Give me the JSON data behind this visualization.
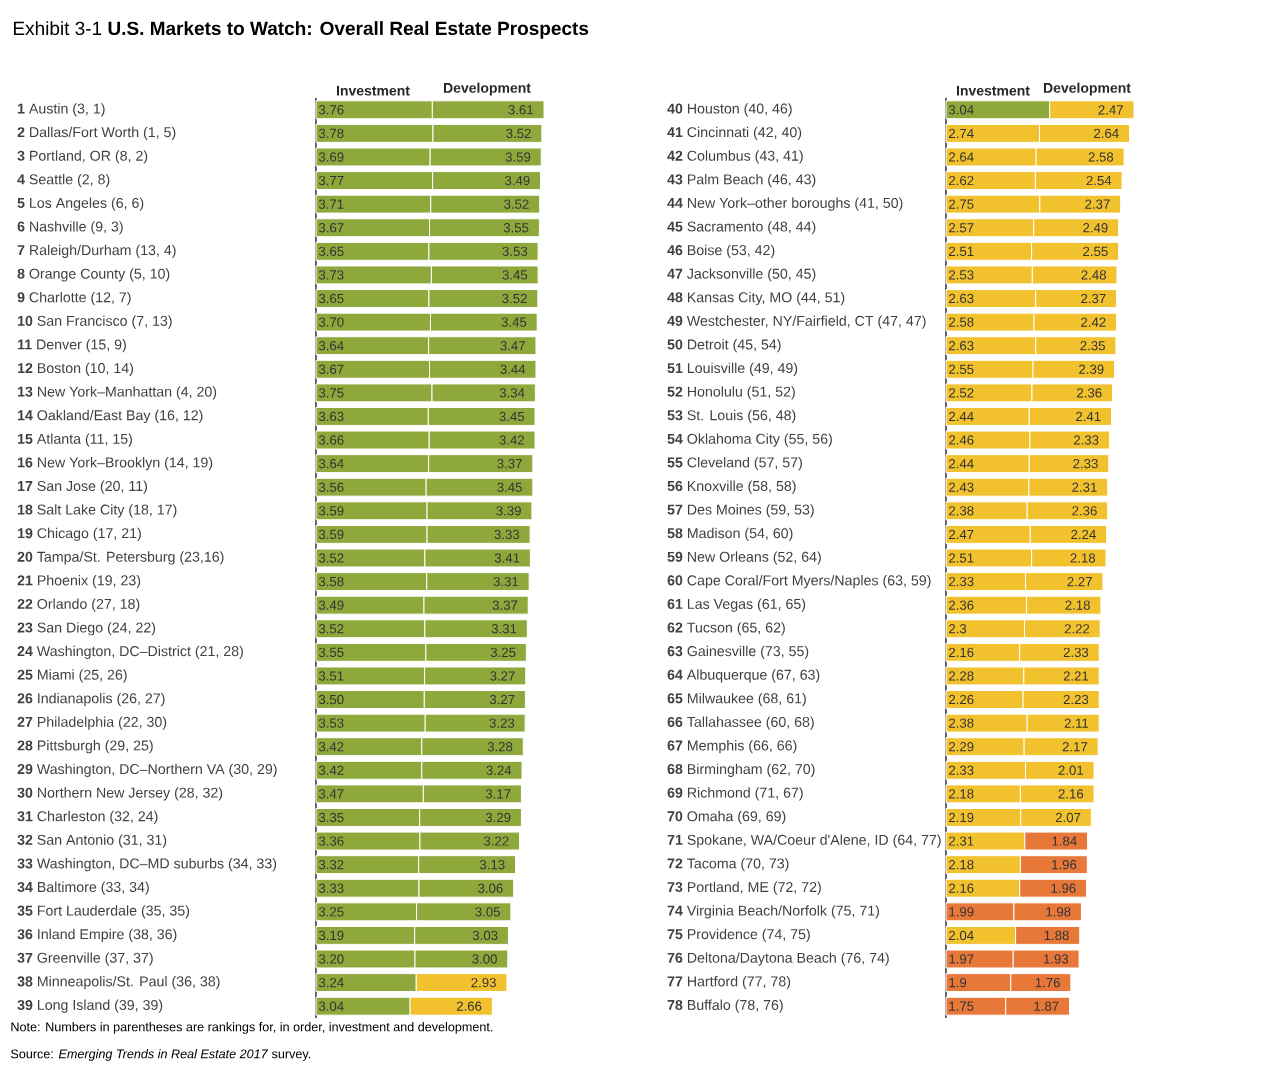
{
  "chart_data": [
    {
      "type": "bar",
      "orientation": "horizontal",
      "stacked": true,
      "title": "Exhibit 3-1  **U.S. Markets to Watch: Overall Real Estate Prospects**",
      "annotations": [
        "Note: Numbers in parentheses are rankings for, in order, investment and development.",
        "Source: *Emerging Trends in Real Estate 2017* survey."
      ],
      "categories": [
        "**1** Austin (3, 1)",
        "**2** Dallas/Fort Worth (1, 5)",
        "**3** Portland, OR (8, 2)",
        "**4** Seattle (2, 8)",
        "**5** Los Angeles (6, 6)",
        "**6** Nashville (9, 3)",
        "**7** Raleigh/Durham (13, 4)",
        "**8** Orange County (5, 10)",
        "**9** Charlotte (12, 7)",
        "**10** San Francisco (7, 13)",
        "**11** Denver (15, 9)",
        "**12** Boston (10, 14)",
        "**13** New York–Manhattan (4, 20)",
        "**14** Oakland/East Bay (16, 12)",
        "**15** Atlanta (11, 15)",
        "**16** New York–Brooklyn (14, 19)",
        "**17** San Jose (20, 11)",
        "**18** Salt Lake City (18, 17)",
        "**19** Chicago (17, 21)",
        "**20** Tampa/St. Petersburg (23,16)",
        "**21** Phoenix (19, 23)",
        "**22** Orlando (27, 18)",
        "**23** San Diego (24, 22)",
        "**24** Washington, DC–District (21, 28)",
        "**25** Miami (25, 26)",
        "**26** Indianapolis (26, 27)",
        "**27** Philadelphia (22, 30)",
        "**28** Pittsburgh (29, 25)",
        "**29** Washington, DC–Northern VA (30, 29)",
        "**30** Northern New Jersey (28, 32)",
        "**31** Charleston (32, 24)",
        "**32** San Antonio (31, 31)",
        "**33** Washington, DC–MD suburbs (34, 33)",
        "**34** Baltimore (33, 34)",
        "**35** Fort Lauderdale (35, 35)",
        "**36** Inland Empire (38, 36)",
        "**37** Greenville (37, 37)",
        "**38** Minneapolis/St. Paul (36, 38)",
        "**39** Long Island (39, 39)"
      ],
      "series": [
        {
          "name": "Investment",
          "values": [
            3.76,
            3.78,
            3.69,
            3.77,
            3.71,
            3.67,
            3.65,
            3.73,
            3.65,
            3.7,
            3.64,
            3.67,
            3.75,
            3.63,
            3.66,
            3.64,
            3.56,
            3.59,
            3.59,
            3.52,
            3.58,
            3.49,
            3.52,
            3.55,
            3.51,
            3.5,
            3.53,
            3.42,
            3.42,
            3.47,
            3.35,
            3.36,
            3.32,
            3.33,
            3.25,
            3.19,
            3.2,
            3.24,
            3.04
          ],
          "value_labels": [
            "3.76",
            "3.78",
            "3.69",
            "3.77",
            "3.71",
            "3.67",
            "3.65",
            "3.73",
            "3.65",
            "3.70",
            "3.64",
            "3.67",
            "3.75",
            "3.63",
            "3.66",
            "3.64",
            "3.56",
            "3.59",
            "3.59",
            "3.52",
            "3.58",
            "3.49",
            "3.52",
            "3.55",
            "3.51",
            "3.50",
            "3.53",
            "3.42",
            "3.42",
            "3.47",
            "3.35",
            "3.36",
            "3.32",
            "3.33",
            "3.25",
            "3.19",
            "3.20",
            "3.24",
            "3.04"
          ],
          "colors": [
            "#8fa83c",
            "#8fa83c",
            "#8fa83c",
            "#8fa83c",
            "#8fa83c",
            "#8fa83c",
            "#8fa83c",
            "#8fa83c",
            "#8fa83c",
            "#8fa83c",
            "#8fa83c",
            "#8fa83c",
            "#8fa83c",
            "#8fa83c",
            "#8fa83c",
            "#8fa83c",
            "#8fa83c",
            "#8fa83c",
            "#8fa83c",
            "#8fa83c",
            "#8fa83c",
            "#8fa83c",
            "#8fa83c",
            "#8fa83c",
            "#8fa83c",
            "#8fa83c",
            "#8fa83c",
            "#8fa83c",
            "#8fa83c",
            "#8fa83c",
            "#8fa83c",
            "#8fa83c",
            "#8fa83c",
            "#8fa83c",
            "#8fa83c",
            "#8fa83c",
            "#8fa83c",
            "#8fa83c",
            "#8fa83c"
          ]
        },
        {
          "name": "Development",
          "values": [
            3.61,
            3.52,
            3.59,
            3.49,
            3.52,
            3.55,
            3.53,
            3.45,
            3.52,
            3.45,
            3.47,
            3.44,
            3.34,
            3.45,
            3.42,
            3.37,
            3.45,
            3.39,
            3.33,
            3.41,
            3.31,
            3.37,
            3.31,
            3.25,
            3.27,
            3.27,
            3.23,
            3.28,
            3.24,
            3.17,
            3.29,
            3.22,
            3.13,
            3.06,
            3.05,
            3.03,
            3.0,
            2.93,
            2.66
          ],
          "value_labels": [
            "3.61",
            "3.52",
            "3.59",
            "3.49",
            "3.52",
            "3.55",
            "3.53",
            "3.45",
            "3.52",
            "3.45",
            "3.47",
            "3.44",
            "3.34",
            "3.45",
            "3.42",
            "3.37",
            "3.45",
            "3.39",
            "3.33",
            "3.41",
            "3.31",
            "3.37",
            "3.31",
            "3.25",
            "3.27",
            "3.27",
            "3.23",
            "3.28",
            "3.24",
            "3.17",
            "3.29",
            "3.22",
            "3.13",
            "3.06",
            "3.05",
            "3.03",
            "3.00",
            "2.93",
            "2.66"
          ],
          "colors": [
            "#8fa83c",
            "#8fa83c",
            "#8fa83c",
            "#8fa83c",
            "#8fa83c",
            "#8fa83c",
            "#8fa83c",
            "#8fa83c",
            "#8fa83c",
            "#8fa83c",
            "#8fa83c",
            "#8fa83c",
            "#8fa83c",
            "#8fa83c",
            "#8fa83c",
            "#8fa83c",
            "#8fa83c",
            "#8fa83c",
            "#8fa83c",
            "#8fa83c",
            "#8fa83c",
            "#8fa83c",
            "#8fa83c",
            "#8fa83c",
            "#8fa83c",
            "#8fa83c",
            "#8fa83c",
            "#8fa83c",
            "#8fa83c",
            "#8fa83c",
            "#8fa83c",
            "#8fa83c",
            "#8fa83c",
            "#8fa83c",
            "#8fa83c",
            "#8fa83c",
            "#8fa83c",
            "#f2c12e",
            "#f2c12e"
          ]
        }
      ]
    },
    {
      "type": "bar",
      "orientation": "horizontal",
      "stacked": true,
      "categories": [
        "**40** Houston (40, 46)",
        "**41** Cincinnati (42, 40)",
        "**42** Columbus (43, 41)",
        "**43** Palm Beach (46, 43)",
        "**44** New York–other boroughs (41, 50)",
        "**45** Sacramento (48, 44)",
        "**46** Boise (53, 42)",
        "**47** Jacksonville (50, 45)",
        "**48** Kansas City, MO (44, 51)",
        "**49** Westchester, NY/Fairfield, CT (47, 47)",
        "**50** Detroit (45, 54)",
        "**51** Louisville (49, 49)",
        "**52** Honolulu (51, 52)",
        "**53** St. Louis (56, 48)",
        "**54** Oklahoma City (55, 56)",
        "**55** Cleveland (57, 57)",
        "**56** Knoxville (58, 58)",
        "**57** Des Moines (59, 53)",
        "**58** Madison (54, 60)",
        "**59** New Orleans (52, 64)",
        "**60** Cape Coral/Fort Myers/Naples (63, 59)",
        "**61** Las Vegas (61, 65)",
        "**62** Tucson (65, 62)",
        "**63** Gainesville (73, 55)",
        "**64** Albuquerque (67, 63)",
        "**65** Milwaukee (68, 61)",
        "**66** Tallahassee (60, 68)",
        "**67** Memphis (66, 66)",
        "**68** Birmingham (62, 70)",
        "**69** Richmond (71, 67)",
        "**70** Omaha (69, 69)",
        "**71** Spokane, WA/Coeur d'Alene, ID (64, 77)",
        "**72** Tacoma (70, 73)",
        "**73** Portland, ME (72, 72)",
        "**74** Virginia Beach/Norfolk (75, 71)",
        "**75** Providence (74, 75)",
        "**76** Deltona/Daytona Beach (76, 74)",
        "**77** Hartford (77, 78)",
        "**78** Buffalo (78, 76)"
      ],
      "series": [
        {
          "name": "Investment",
          "values": [
            3.04,
            2.74,
            2.64,
            2.62,
            2.75,
            2.57,
            2.51,
            2.53,
            2.63,
            2.58,
            2.63,
            2.55,
            2.52,
            2.44,
            2.46,
            2.44,
            2.43,
            2.38,
            2.47,
            2.51,
            2.33,
            2.36,
            2.3,
            2.16,
            2.28,
            2.26,
            2.38,
            2.29,
            2.33,
            2.18,
            2.19,
            2.31,
            2.18,
            2.16,
            1.99,
            2.04,
            1.97,
            1.9,
            1.75
          ],
          "value_labels": [
            "3.04",
            "2.74",
            "2.64",
            "2.62",
            "2.75",
            "2.57",
            "2.51",
            "2.53",
            "2.63",
            "2.58",
            "2.63",
            "2.55",
            "2.52",
            "2.44",
            "2.46",
            "2.44",
            "2.43",
            "2.38",
            "2.47",
            "2.51",
            "2.33",
            "2.36",
            "2.3",
            "2.16",
            "2.28",
            "2.26",
            "2.38",
            "2.29",
            "2.33",
            "2.18",
            "2.19",
            "2.31",
            "2.18",
            "2.16",
            "1.99",
            "2.04",
            "1.97",
            "1.9",
            "1.75"
          ],
          "colors": [
            "#8fa83c",
            "#f2c12e",
            "#f2c12e",
            "#f2c12e",
            "#f2c12e",
            "#f2c12e",
            "#f2c12e",
            "#f2c12e",
            "#f2c12e",
            "#f2c12e",
            "#f2c12e",
            "#f2c12e",
            "#f2c12e",
            "#f2c12e",
            "#f2c12e",
            "#f2c12e",
            "#f2c12e",
            "#f2c12e",
            "#f2c12e",
            "#f2c12e",
            "#f2c12e",
            "#f2c12e",
            "#f2c12e",
            "#f2c12e",
            "#f2c12e",
            "#f2c12e",
            "#f2c12e",
            "#f2c12e",
            "#f2c12e",
            "#f2c12e",
            "#f2c12e",
            "#f2c12e",
            "#f2c12e",
            "#f2c12e",
            "#e8773a",
            "#f2c12e",
            "#e8773a",
            "#e8773a",
            "#e8773a"
          ]
        },
        {
          "name": "Development",
          "values": [
            2.47,
            2.64,
            2.58,
            2.54,
            2.37,
            2.49,
            2.55,
            2.48,
            2.37,
            2.42,
            2.35,
            2.39,
            2.36,
            2.41,
            2.33,
            2.33,
            2.31,
            2.36,
            2.24,
            2.18,
            2.27,
            2.18,
            2.22,
            2.33,
            2.21,
            2.23,
            2.11,
            2.17,
            2.01,
            2.16,
            2.07,
            1.84,
            1.96,
            1.96,
            1.98,
            1.88,
            1.93,
            1.76,
            1.87
          ],
          "value_labels": [
            "2.47",
            "2.64",
            "2.58",
            "2.54",
            "2.37",
            "2.49",
            "2.55",
            "2.48",
            "2.37",
            "2.42",
            "2.35",
            "2.39",
            "2.36",
            "2.41",
            "2.33",
            "2.33",
            "2.31",
            "2.36",
            "2.24",
            "2.18",
            "2.27",
            "2.18",
            "2.22",
            "2.33",
            "2.21",
            "2.23",
            "2.11",
            "2.17",
            "2.01",
            "2.16",
            "2.07",
            "1.84",
            "1.96",
            "1.96",
            "1.98",
            "1.88",
            "1.93",
            "1.76",
            "1.87"
          ],
          "colors": [
            "#f2c12e",
            "#f2c12e",
            "#f2c12e",
            "#f2c12e",
            "#f2c12e",
            "#f2c12e",
            "#f2c12e",
            "#f2c12e",
            "#f2c12e",
            "#f2c12e",
            "#f2c12e",
            "#f2c12e",
            "#f2c12e",
            "#f2c12e",
            "#f2c12e",
            "#f2c12e",
            "#f2c12e",
            "#f2c12e",
            "#f2c12e",
            "#f2c12e",
            "#f2c12e",
            "#f2c12e",
            "#f2c12e",
            "#f2c12e",
            "#f2c12e",
            "#f2c12e",
            "#f2c12e",
            "#f2c12e",
            "#f2c12e",
            "#f2c12e",
            "#f2c12e",
            "#e8773a",
            "#e8773a",
            "#e8773a",
            "#e8773a",
            "#e8773a",
            "#e8773a",
            "#e8773a",
            "#e8773a"
          ]
        }
      ]
    }
  ]
}
